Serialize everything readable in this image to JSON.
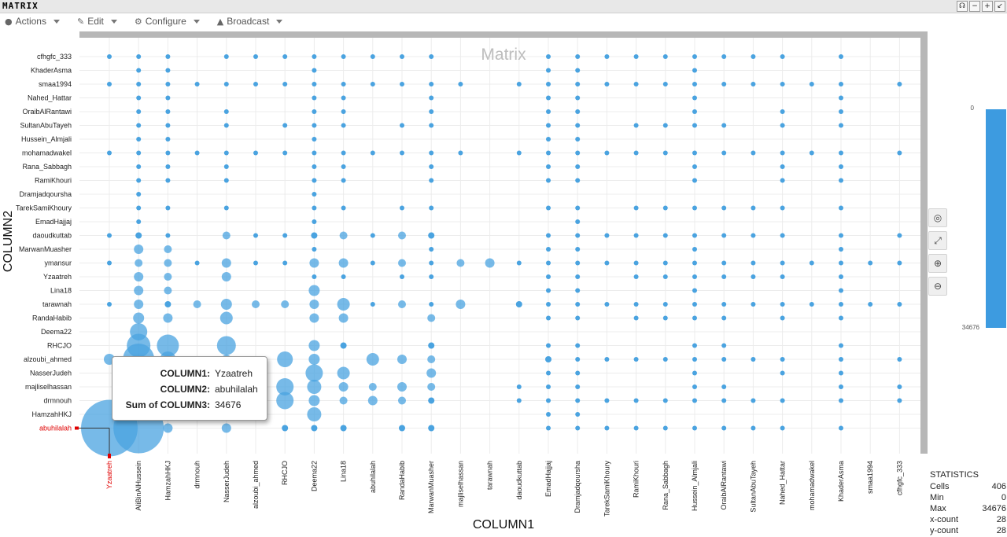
{
  "window": {
    "title": "MATRIX",
    "buttons": [
      "headset",
      "minimize",
      "maximize",
      "restore"
    ]
  },
  "menu": [
    {
      "label": "Actions",
      "icon": "user-icon"
    },
    {
      "label": "Edit",
      "icon": "pencil-icon"
    },
    {
      "label": "Configure",
      "icon": "gears-icon"
    },
    {
      "label": "Broadcast",
      "icon": "megaphone-icon"
    }
  ],
  "tools": [
    "target-icon",
    "expand-icon",
    "zoom-in-icon",
    "zoom-out-icon"
  ],
  "scale": {
    "min": "0",
    "max": "34676",
    "color": "#3d9be0"
  },
  "stats": {
    "title": "STATISTICS",
    "rows": [
      {
        "label": "Cells",
        "value": "406"
      },
      {
        "label": "Min",
        "value": "0"
      },
      {
        "label": "Max",
        "value": "34676"
      },
      {
        "label": "x-count",
        "value": "28"
      },
      {
        "label": "y-count",
        "value": "28"
      }
    ]
  },
  "tooltip": {
    "rows": [
      {
        "key": "COLUMN1:",
        "value": "Yzaatreh"
      },
      {
        "key": "COLUMN2:",
        "value": "abuhilalah"
      },
      {
        "key": "Sum of COLUMN3:",
        "value": "34676"
      }
    ]
  },
  "chart_data": {
    "type": "scatter",
    "title": "Matrix",
    "xlabel": "COLUMN1",
    "ylabel": "COLUMN2",
    "point_color": "#4aa3e0",
    "highlight_color": "#e00000",
    "grid": true,
    "size_encodes": "Sum of COLUMN3",
    "x_categories": [
      "Yzaatreh",
      "AliBinAlHussein",
      "HamzahHKJ",
      "drmnouh",
      "NasserJudeh",
      "alzoubi_ahmed",
      "RHCJO",
      "Deema22",
      "Lina18",
      "abuhilalah",
      "RandaHabib",
      "MarwanMuasher",
      "majliselhassan",
      "tarawnah",
      "daoudkuttab",
      "EmadHajjaj",
      "Dramjadqoursha",
      "TarekSamiKhoury",
      "RamiKhouri",
      "Rana_Sabbagh",
      "Hussein_Almjali",
      "OraibAlRantawi",
      "SultanAbuTayeh",
      "Nahed_Hattar",
      "mohamadwakel",
      "KhaderAsma",
      "smaa1994",
      "cfhgfc_333"
    ],
    "y_categories": [
      "cfhgfc_333",
      "KhaderAsma",
      "smaa1994",
      "Nahed_Hattar",
      "OraibAlRantawi",
      "SultanAbuTayeh",
      "Hussein_Almjali",
      "mohamadwakel",
      "Rana_Sabbagh",
      "RamiKhouri",
      "Dramjadqoursha",
      "TarekSamiKhoury",
      "EmadHajjaj",
      "daoudkuttab",
      "MarwanMuasher",
      "ymansur",
      "Yzaatreh",
      "Lina18",
      "tarawnah",
      "RandaHabib",
      "Deema22",
      "RHCJO",
      "alzoubi_ahmed",
      "NasserJudeh",
      "majliselhassan",
      "drmnouh",
      "HamzahHKJ",
      "abuhilalah"
    ],
    "highlight": {
      "x": "Yzaatreh",
      "y": "abuhilalah",
      "value": 34676
    },
    "rows": [
      {
        "y": "cfhgfc_333",
        "cols": [
          0,
          1,
          2,
          4,
          5,
          6,
          7,
          8,
          9,
          10,
          11,
          15,
          16,
          17,
          18,
          19,
          20,
          21,
          22,
          23,
          25
        ],
        "sizes": [
          3,
          3,
          3,
          3,
          3,
          3,
          3,
          3,
          3,
          3,
          3,
          3,
          3,
          3,
          3,
          3,
          3,
          3,
          3,
          3,
          3
        ]
      },
      {
        "y": "KhaderAsma",
        "cols": [
          1,
          2,
          7,
          15,
          16,
          20
        ],
        "sizes": [
          3,
          3,
          3,
          3,
          3,
          3
        ]
      },
      {
        "y": "smaa1994",
        "cols": [
          0,
          1,
          2,
          3,
          4,
          5,
          6,
          7,
          8,
          9,
          10,
          11,
          12,
          14,
          15,
          16,
          17,
          18,
          19,
          20,
          21,
          22,
          23,
          24,
          25,
          27
        ],
        "sizes": [
          3,
          3,
          3,
          3,
          3,
          3,
          3,
          3,
          3,
          3,
          3,
          3,
          3,
          3,
          3,
          3,
          3,
          3,
          3,
          3,
          3,
          3,
          3,
          3,
          3,
          3
        ]
      },
      {
        "y": "Nahed_Hattar",
        "cols": [
          1,
          2,
          7,
          8,
          11,
          15,
          16,
          20,
          25
        ],
        "sizes": [
          3,
          3,
          3,
          3,
          3,
          3,
          3,
          3,
          3
        ]
      },
      {
        "y": "OraibAlRantawi",
        "cols": [
          1,
          2,
          4,
          7,
          8,
          11,
          15,
          16,
          20,
          23,
          25
        ],
        "sizes": [
          3,
          3,
          3,
          3,
          3,
          3,
          3,
          3,
          3,
          3,
          3
        ]
      },
      {
        "y": "SultanAbuTayeh",
        "cols": [
          1,
          2,
          4,
          6,
          7,
          8,
          10,
          11,
          15,
          16,
          18,
          19,
          20,
          21,
          23,
          25
        ],
        "sizes": [
          3,
          3,
          3,
          3,
          3,
          3,
          3,
          3,
          3,
          3,
          3,
          3,
          3,
          3,
          3,
          3
        ]
      },
      {
        "y": "Hussein_Almjali",
        "cols": [
          1,
          2,
          7,
          15,
          16
        ],
        "sizes": [
          3,
          3,
          3,
          3,
          3
        ]
      },
      {
        "y": "mohamadwakel",
        "cols": [
          0,
          1,
          2,
          3,
          4,
          5,
          6,
          7,
          8,
          9,
          10,
          11,
          12,
          14,
          15,
          16,
          17,
          18,
          19,
          20,
          21,
          22,
          23,
          24,
          25,
          27
        ],
        "sizes": [
          3,
          3,
          3,
          3,
          3,
          3,
          3,
          3,
          3,
          3,
          3,
          3,
          3,
          3,
          3,
          3,
          3,
          3,
          3,
          3,
          3,
          3,
          3,
          3,
          3,
          3
        ]
      },
      {
        "y": "Rana_Sabbagh",
        "cols": [
          1,
          2,
          4,
          7,
          8,
          11,
          15,
          16,
          20,
          23,
          25
        ],
        "sizes": [
          3,
          3,
          3,
          3,
          3,
          3,
          3,
          3,
          3,
          3,
          3
        ]
      },
      {
        "y": "RamiKhouri",
        "cols": [
          1,
          2,
          4,
          7,
          8,
          11,
          15,
          16,
          20,
          23,
          25
        ],
        "sizes": [
          3,
          3,
          3,
          3,
          3,
          3,
          3,
          3,
          3,
          3,
          3
        ]
      },
      {
        "y": "Dramjadqoursha",
        "cols": [
          1,
          7
        ],
        "sizes": [
          3,
          3
        ]
      },
      {
        "y": "TarekSamiKhoury",
        "cols": [
          1,
          2,
          4,
          7,
          8,
          10,
          11,
          15,
          16,
          18,
          19,
          20,
          21,
          22,
          23,
          25
        ],
        "sizes": [
          3,
          3,
          3,
          3,
          3,
          3,
          3,
          3,
          3,
          3,
          3,
          3,
          3,
          3,
          3,
          3
        ]
      },
      {
        "y": "EmadHajjaj",
        "cols": [
          1,
          7,
          16
        ],
        "sizes": [
          3,
          3,
          3
        ]
      },
      {
        "y": "daoudkuttab",
        "cols": [
          0,
          1,
          2,
          4,
          5,
          6,
          7,
          8,
          9,
          10,
          11,
          15,
          16,
          17,
          18,
          19,
          20,
          21,
          22,
          23,
          25,
          27
        ],
        "sizes": [
          3,
          4,
          3,
          5,
          3,
          3,
          4,
          5,
          3,
          5,
          4,
          3,
          3,
          3,
          3,
          3,
          3,
          3,
          3,
          3,
          3,
          3
        ]
      },
      {
        "y": "MarwanMuasher",
        "cols": [
          1,
          2,
          7,
          11,
          15,
          16,
          20,
          25
        ],
        "sizes": [
          6,
          5,
          3,
          3,
          3,
          3,
          3,
          3
        ]
      },
      {
        "y": "ymansur",
        "cols": [
          0,
          1,
          2,
          3,
          4,
          5,
          6,
          7,
          8,
          9,
          10,
          11,
          12,
          13,
          14,
          15,
          16,
          17,
          18,
          19,
          20,
          21,
          22,
          23,
          24,
          25,
          26,
          27
        ],
        "sizes": [
          3,
          5,
          5,
          3,
          6,
          3,
          3,
          6,
          6,
          3,
          5,
          3,
          5,
          6,
          3,
          3,
          3,
          3,
          3,
          3,
          3,
          3,
          3,
          3,
          3,
          3,
          3,
          3
        ]
      },
      {
        "y": "Yzaatreh",
        "cols": [
          1,
          2,
          4,
          7,
          8,
          10,
          11,
          15,
          16,
          18,
          19,
          20,
          21,
          22,
          23,
          25
        ],
        "sizes": [
          6,
          5,
          6,
          3,
          3,
          3,
          3,
          3,
          3,
          3,
          3,
          3,
          3,
          3,
          3,
          3
        ]
      },
      {
        "y": "Lina18",
        "cols": [
          1,
          2,
          7,
          15,
          16,
          20,
          25
        ],
        "sizes": [
          6,
          5,
          7,
          3,
          3,
          3,
          3
        ]
      },
      {
        "y": "tarawnah",
        "cols": [
          0,
          1,
          2,
          3,
          4,
          5,
          6,
          7,
          8,
          9,
          10,
          11,
          12,
          14,
          15,
          16,
          17,
          18,
          19,
          20,
          21,
          22,
          23,
          24,
          25,
          26,
          27
        ],
        "sizes": [
          3,
          6,
          4,
          5,
          7,
          5,
          5,
          6,
          8,
          3,
          5,
          3,
          6,
          4,
          3,
          3,
          3,
          3,
          3,
          3,
          3,
          3,
          3,
          3,
          3,
          3,
          3
        ]
      },
      {
        "y": "RandaHabib",
        "cols": [
          1,
          2,
          4,
          7,
          8,
          11,
          15,
          16,
          18,
          19,
          20,
          21,
          23,
          25
        ],
        "sizes": [
          7,
          6,
          8,
          6,
          6,
          5,
          3,
          3,
          3,
          3,
          3,
          3,
          3,
          3
        ]
      },
      {
        "y": "Deema22",
        "cols": [
          1
        ],
        "sizes": [
          11
        ]
      },
      {
        "y": "RHCJO",
        "cols": [
          1,
          2,
          4,
          7,
          8,
          11,
          15,
          16,
          20,
          21,
          25
        ],
        "sizes": [
          15,
          14,
          12,
          7,
          4,
          4,
          3,
          3,
          3,
          3,
          3
        ]
      },
      {
        "y": "alzoubi_ahmed",
        "cols": [
          0,
          1,
          2,
          4,
          6,
          7,
          9,
          10,
          11,
          15,
          16,
          17,
          18,
          19,
          20,
          21,
          22,
          23,
          25,
          27
        ],
        "sizes": [
          7,
          20,
          10,
          6,
          10,
          7,
          8,
          6,
          5,
          4,
          3,
          3,
          3,
          3,
          3,
          3,
          3,
          3,
          3,
          3
        ]
      },
      {
        "y": "NasserJudeh",
        "cols": [
          7,
          8,
          11,
          15,
          16,
          20,
          23,
          25
        ],
        "sizes": [
          11,
          8,
          6,
          3,
          3,
          3,
          3,
          3
        ]
      },
      {
        "y": "majliselhassan",
        "cols": [
          6,
          7,
          8,
          9,
          10,
          11,
          14,
          15,
          16,
          20,
          21,
          25,
          27
        ],
        "sizes": [
          11,
          9,
          6,
          5,
          6,
          5,
          3,
          3,
          3,
          3,
          3,
          3,
          3
        ]
      },
      {
        "y": "drmnouh",
        "cols": [
          6,
          7,
          8,
          9,
          10,
          11,
          14,
          15,
          16,
          17,
          18,
          19,
          20,
          21,
          22,
          23,
          25,
          27
        ],
        "sizes": [
          11,
          7,
          5,
          6,
          5,
          4,
          3,
          3,
          3,
          3,
          3,
          3,
          3,
          3,
          3,
          3,
          3,
          3
        ]
      },
      {
        "y": "HamzahHKJ",
        "cols": [
          7,
          15,
          16
        ],
        "sizes": [
          9,
          3,
          3
        ]
      },
      {
        "y": "abuhilalah",
        "cols": [
          0,
          1,
          2,
          4,
          6,
          7,
          8,
          10,
          11,
          15,
          16,
          17,
          18,
          19,
          20,
          21,
          22,
          23,
          25
        ],
        "sizes": [
          36,
          32,
          6,
          6,
          4,
          4,
          4,
          4,
          4,
          3,
          3,
          3,
          3,
          3,
          3,
          3,
          3,
          3,
          3
        ]
      }
    ]
  }
}
